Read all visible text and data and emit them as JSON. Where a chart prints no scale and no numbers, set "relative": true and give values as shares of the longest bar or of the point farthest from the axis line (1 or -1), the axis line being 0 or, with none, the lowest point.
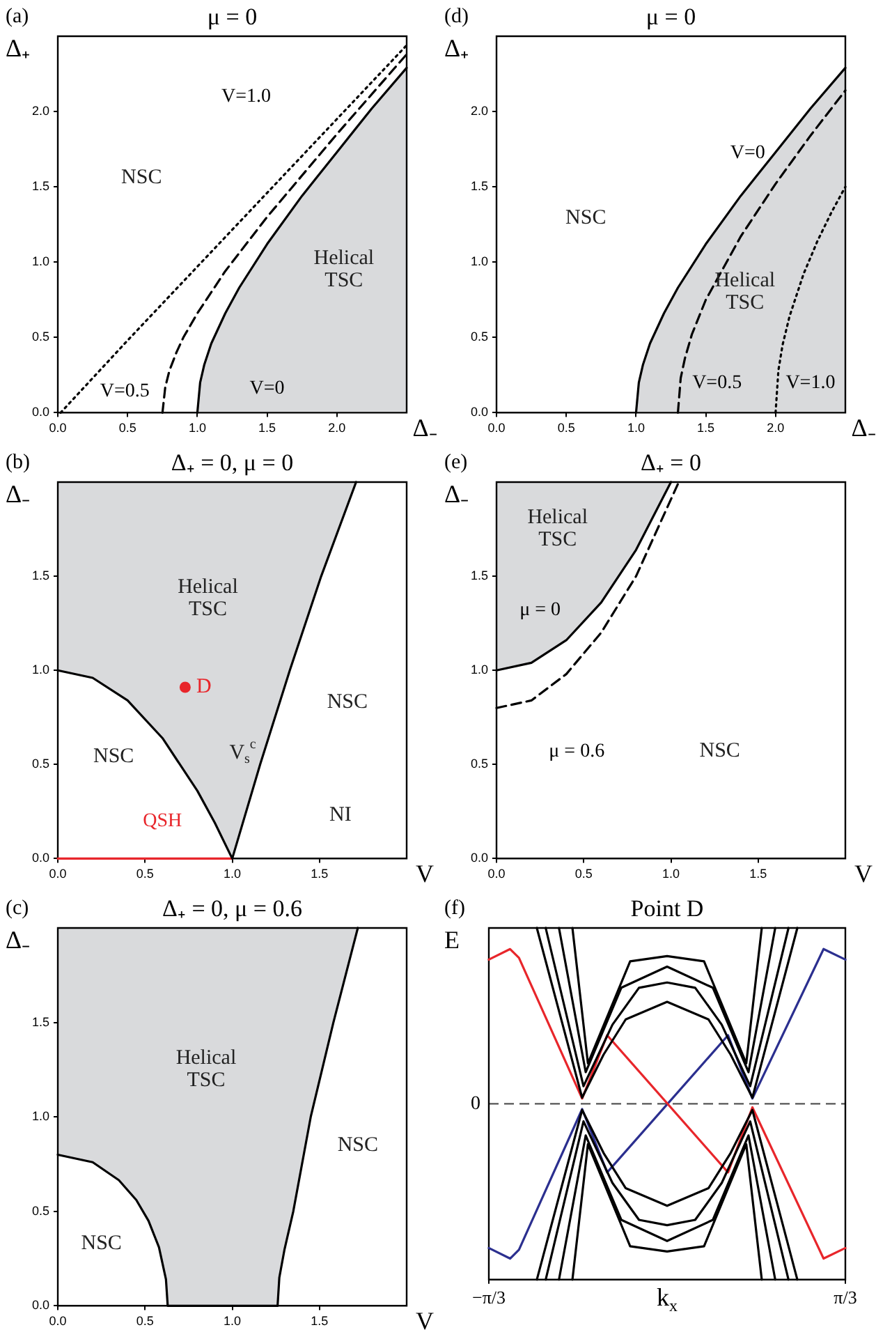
{
  "chart_data": [
    {
      "type": "line",
      "title": "μ = 0",
      "xlabel": "Δ₋",
      "ylabel": "Δ₊",
      "xlim": [
        0,
        2.5
      ],
      "ylim": [
        0,
        2.5
      ],
      "marker": "none",
      "xticks": [
        {
          "value": 0,
          "label": "0.0"
        },
        {
          "value": 0.5,
          "label": "0.5"
        },
        {
          "value": 1,
          "label": "1.0"
        },
        {
          "value": 1.5,
          "label": "1.5"
        },
        {
          "value": 2,
          "label": "2.0"
        }
      ],
      "yticks": [
        {
          "value": 0,
          "label": "0.0"
        },
        {
          "value": 0.5,
          "label": "0.5"
        },
        {
          "value": 1,
          "label": "1.0"
        },
        {
          "value": 1.5,
          "label": "1.5"
        },
        {
          "value": 2,
          "label": "2.0"
        }
      ],
      "series": [
        {
          "name": "V=0",
          "color": "#000000",
          "line_style": "solid",
          "x": [
            1,
            1.02,
            1.05,
            1.1,
            1.2,
            1.3,
            1.5,
            1.75,
            2,
            2.25,
            2.5
          ],
          "values": [
            0,
            0.2,
            0.32,
            0.46,
            0.66,
            0.83,
            1.12,
            1.44,
            1.73,
            2.02,
            2.29
          ],
          "lower": [
            0,
            0,
            0,
            0,
            0,
            0,
            0,
            0,
            0,
            0,
            0
          ],
          "upper": [
            0,
            0.2,
            0.32,
            0.46,
            0.66,
            0.83,
            1.12,
            1.44,
            1.73,
            2.02,
            2.29
          ]
        },
        {
          "name": "V=0.5",
          "color": "#000000",
          "line_style": "dashed",
          "x": [
            0.75,
            0.77,
            0.8,
            0.85,
            0.9,
            1,
            1.2,
            1.5,
            2,
            2.5
          ],
          "values": [
            0,
            0.17,
            0.28,
            0.4,
            0.5,
            0.66,
            0.94,
            1.3,
            1.85,
            2.38
          ]
        },
        {
          "name": "V=1.0",
          "color": "#000000",
          "line_style": "dotted",
          "x": [
            0.02,
            0.5,
            1,
            1.5,
            2,
            2.5
          ],
          "values": [
            0,
            0.48,
            0.97,
            1.46,
            1.95,
            2.44
          ]
        }
      ],
      "annotations": [
        "(a)",
        "NSC",
        "Helical\nTSC"
      ]
    },
    {
      "type": "line",
      "title": "μ = 0",
      "xlabel": "Δ₋",
      "ylabel": "Δ₊",
      "xlim": [
        0,
        2.5
      ],
      "ylim": [
        0,
        2.5
      ],
      "marker": "none",
      "xticks": [
        {
          "value": 0,
          "label": "0.0"
        },
        {
          "value": 0.5,
          "label": "0.5"
        },
        {
          "value": 1,
          "label": "1.0"
        },
        {
          "value": 1.5,
          "label": "1.5"
        },
        {
          "value": 2,
          "label": "2.0"
        }
      ],
      "yticks": [
        {
          "value": 0,
          "label": "0.0"
        },
        {
          "value": 0.5,
          "label": "0.5"
        },
        {
          "value": 1,
          "label": "1.0"
        },
        {
          "value": 1.5,
          "label": "1.5"
        },
        {
          "value": 2,
          "label": "2.0"
        }
      ],
      "series": [
        {
          "name": "V=0",
          "color": "#000000",
          "line_style": "solid",
          "x": [
            1,
            1.02,
            1.05,
            1.1,
            1.2,
            1.3,
            1.5,
            1.75,
            2,
            2.25,
            2.5
          ],
          "values": [
            0,
            0.2,
            0.32,
            0.46,
            0.66,
            0.83,
            1.12,
            1.44,
            1.73,
            2.02,
            2.29
          ],
          "lower": [
            0,
            0,
            0,
            0,
            0,
            0,
            0,
            0,
            0,
            0,
            0
          ],
          "upper": [
            0,
            0.2,
            0.32,
            0.46,
            0.66,
            0.83,
            1.12,
            1.44,
            1.73,
            2.02,
            2.29
          ]
        },
        {
          "name": "V=0.5",
          "color": "#000000",
          "line_style": "dashed",
          "x": [
            1.3,
            1.32,
            1.35,
            1.4,
            1.5,
            1.75,
            2,
            2.25,
            2.5
          ],
          "values": [
            0,
            0.23,
            0.36,
            0.52,
            0.75,
            1.17,
            1.52,
            1.84,
            2.14
          ]
        },
        {
          "name": "V=1.0",
          "color": "#000000",
          "line_style": "dotted",
          "x": [
            2,
            2.02,
            2.05,
            2.1,
            2.2,
            2.3,
            2.4,
            2.5
          ],
          "values": [
            0,
            0.28,
            0.45,
            0.64,
            0.92,
            1.14,
            1.33,
            1.5
          ]
        }
      ],
      "annotations": [
        "(d)",
        "NSC",
        "Helical\nTSC"
      ]
    },
    {
      "type": "line",
      "title": "Δ₊ = 0, μ = 0",
      "xlabel": "V",
      "ylabel": "Δ₋",
      "xlim": [
        0,
        2
      ],
      "ylim": [
        0,
        2
      ],
      "marker": "none",
      "xticks": [
        {
          "value": 0,
          "label": "0.0"
        },
        {
          "value": 0.5,
          "label": "0.5"
        },
        {
          "value": 1,
          "label": "1.0"
        },
        {
          "value": 1.5,
          "label": "1.5"
        }
      ],
      "yticks": [
        {
          "value": 0,
          "label": "0.0"
        },
        {
          "value": 0.5,
          "label": "0.5"
        },
        {
          "value": 1,
          "label": "1.0"
        },
        {
          "value": 1.5,
          "label": "1.5"
        }
      ],
      "series": [
        {
          "color": "#000000",
          "line_style": "solid",
          "x": [
            0,
            0.2,
            0.4,
            0.6,
            0.8,
            0.9,
            1,
            1.16,
            1.33,
            1.51,
            1.71
          ],
          "values": [
            1,
            0.96,
            0.84,
            0.64,
            0.36,
            0.19,
            0,
            0.5,
            1,
            1.5,
            2
          ],
          "lower": [
            1,
            0.96,
            0.84,
            0.64,
            0.36,
            0.19,
            0,
            0.5,
            1,
            1.5,
            2
          ],
          "upper": [
            2,
            2,
            2,
            2,
            2,
            2,
            2,
            2,
            2,
            2,
            2
          ]
        },
        {
          "name": "QSH",
          "color": "#e8262b",
          "line_style": "solid",
          "x": [
            0,
            1
          ],
          "values": [
            0,
            0
          ]
        },
        {
          "name": "D",
          "type": "scatter",
          "marker": "circle",
          "color": "#e8262b",
          "x": [
            0.73
          ],
          "values": [
            0.91
          ]
        }
      ],
      "annotations": [
        "(b)",
        "Helical\nTSC",
        "NSC",
        "NSC",
        "V$_{s}$$^{c}$",
        "NI"
      ]
    },
    {
      "type": "line",
      "title": "Δ₊ = 0",
      "xlabel": "V",
      "ylabel": "Δ₋",
      "xlim": [
        0,
        2
      ],
      "ylim": [
        0,
        2
      ],
      "marker": "none",
      "xticks": [
        {
          "value": 0,
          "label": "0.0"
        },
        {
          "value": 0.5,
          "label": "0.5"
        },
        {
          "value": 1,
          "label": "1.0"
        },
        {
          "value": 1.5,
          "label": "1.5"
        }
      ],
      "yticks": [
        {
          "value": 0,
          "label": "0.0"
        },
        {
          "value": 0.5,
          "label": "0.5"
        },
        {
          "value": 1,
          "label": "1.0"
        },
        {
          "value": 1.5,
          "label": "1.5"
        }
      ],
      "series": [
        {
          "name": "μ = 0",
          "color": "#000000",
          "line_style": "solid",
          "x": [
            0,
            0.2,
            0.4,
            0.6,
            0.8,
            1
          ],
          "values": [
            1,
            1.04,
            1.16,
            1.36,
            1.64,
            2
          ],
          "lower": [
            1,
            1.04,
            1.16,
            1.36,
            1.64,
            2
          ],
          "upper": [
            2,
            2,
            2,
            2,
            2,
            2
          ]
        },
        {
          "name": "μ = 0.6",
          "color": "#000000",
          "line_style": "dashed",
          "x": [
            0,
            0.2,
            0.4,
            0.6,
            0.8,
            1.04
          ],
          "values": [
            0.8,
            0.84,
            0.98,
            1.2,
            1.5,
            1.99
          ]
        }
      ],
      "annotations": [
        "(e)",
        "Helical\nTSC",
        "NSC"
      ]
    },
    {
      "type": "line",
      "title": "Δ₊ = 0, μ = 0.6",
      "xlabel": "V",
      "ylabel": "Δ₋",
      "xlim": [
        0,
        2
      ],
      "ylim": [
        0,
        2
      ],
      "marker": "none",
      "xticks": [
        {
          "value": 0,
          "label": "0.0"
        },
        {
          "value": 0.5,
          "label": "0.5"
        },
        {
          "value": 1,
          "label": "1.0"
        },
        {
          "value": 1.5,
          "label": "1.5"
        }
      ],
      "yticks": [
        {
          "value": 0,
          "label": "0.0"
        },
        {
          "value": 0.5,
          "label": "0.5"
        },
        {
          "value": 1,
          "label": "1.0"
        },
        {
          "value": 1.5,
          "label": "1.5"
        }
      ],
      "series": [
        {
          "color": "#000000",
          "line_style": "solid",
          "x": [
            0,
            0.2,
            0.35,
            0.45,
            0.52,
            0.58,
            0.62,
            0.63,
            1.26,
            1.27,
            1.3,
            1.35,
            1.45,
            1.58,
            1.72
          ],
          "values": [
            0.8,
            0.76,
            0.665,
            0.56,
            0.45,
            0.31,
            0.14,
            0,
            0,
            0.15,
            0.3,
            0.5,
            1,
            1.5,
            2
          ],
          "lower": [
            0.8,
            0.76,
            0.665,
            0.56,
            0.45,
            0.31,
            0.14,
            0,
            0,
            0.15,
            0.3,
            0.5,
            1,
            1.5,
            2
          ],
          "upper": [
            2,
            2,
            2,
            2,
            2,
            2,
            2,
            2,
            2,
            2,
            2,
            2,
            2,
            2,
            2
          ]
        }
      ],
      "annotations": [
        "(c)",
        "Helical\nTSC",
        "NSC",
        "NSC"
      ]
    },
    {
      "type": "line",
      "title": "Point D",
      "xlabel": "k$_{x}$",
      "ylabel": "E",
      "relative": true,
      "xlim": [
        -1.047,
        1.047
      ],
      "marker": "none",
      "xticks": [
        {
          "value": -1.047,
          "label": "−π/3"
        },
        {
          "value": 1.047,
          "label": "π/3"
        }
      ],
      "ref_lines": [
        {
          "axis": "y",
          "value": 0,
          "label": "0",
          "line_style": "dashed",
          "color": "#555555"
        }
      ],
      "series": [
        {
          "color": "#000000",
          "line_style": "solid",
          "x": [
            -0.765,
            -0.499,
            -0.373,
            -0.243,
            0,
            0.243,
            0.373,
            0.501,
            0.765
          ],
          "values": [
            1,
            0.035,
            0.28,
            0.48,
            0.58,
            0.48,
            0.28,
            0.035,
            1
          ]
        },
        {
          "color": "#000000",
          "line_style": "solid",
          "x": [
            -0.713,
            -0.491,
            -0.321,
            -0.165,
            0,
            0.165,
            0.321,
            0.488,
            0.713
          ],
          "values": [
            1,
            0.1,
            0.45,
            0.66,
            0.69,
            0.66,
            0.45,
            0.1,
            1
          ]
        },
        {
          "color": "#000000",
          "line_style": "solid",
          "x": [
            -0.635,
            -0.478,
            -0.269,
            0,
            0.269,
            0.478,
            0.635
          ],
          "values": [
            1,
            0.18,
            0.66,
            0.78,
            0.66,
            0.18,
            1
          ]
        },
        {
          "color": "#000000",
          "line_style": "solid",
          "x": [
            -0.556,
            -0.465,
            -0.217,
            0,
            0.217,
            0.465,
            0.556
          ],
          "values": [
            1,
            0.23,
            0.81,
            0.84,
            0.81,
            0.23,
            1
          ]
        },
        {
          "color": "#000000",
          "line_style": "solid",
          "x": [
            -0.765,
            -0.499,
            -0.373,
            -0.243,
            0,
            0.243,
            0.373,
            0.501,
            0.765
          ],
          "values": [
            -1,
            -0.035,
            -0.28,
            -0.48,
            -0.58,
            -0.48,
            -0.28,
            -0.035,
            -1
          ]
        },
        {
          "color": "#000000",
          "line_style": "solid",
          "x": [
            -0.713,
            -0.491,
            -0.321,
            -0.165,
            0,
            0.165,
            0.321,
            0.488,
            0.713
          ],
          "values": [
            -1,
            -0.1,
            -0.45,
            -0.66,
            -0.69,
            -0.66,
            -0.45,
            -0.1,
            -1
          ]
        },
        {
          "color": "#000000",
          "line_style": "solid",
          "x": [
            -0.635,
            -0.478,
            -0.269,
            0,
            0.269,
            0.478,
            0.635
          ],
          "values": [
            -1,
            -0.18,
            -0.66,
            -0.78,
            -0.66,
            -0.18,
            -1
          ]
        },
        {
          "color": "#000000",
          "line_style": "solid",
          "x": [
            -0.556,
            -0.465,
            -0.217,
            0,
            0.217,
            0.465,
            0.556
          ],
          "values": [
            -1,
            -0.23,
            -0.81,
            -0.84,
            -0.81,
            -0.23,
            -1
          ]
        },
        {
          "color": "#e8262b",
          "line_style": "solid",
          "x": [
            -1.047,
            -0.922,
            -0.87,
            -0.499,
            -0.352,
            0.358,
            0.501,
            0.919,
            1.047
          ],
          "values": [
            0.82,
            0.88,
            0.83,
            0.03,
            0.39,
            -0.39,
            -0.02,
            -0.88,
            -0.82
          ]
        },
        {
          "color": "#2b2f8f",
          "line_style": "solid",
          "x": [
            -1.047,
            -0.922,
            -0.87,
            -0.499,
            -0.352,
            0.358,
            0.501,
            0.919,
            1.047
          ],
          "values": [
            -0.82,
            -0.88,
            -0.83,
            -0.03,
            -0.39,
            0.39,
            0.03,
            0.88,
            0.82
          ]
        }
      ],
      "annotations": [
        "(f)"
      ]
    }
  ]
}
